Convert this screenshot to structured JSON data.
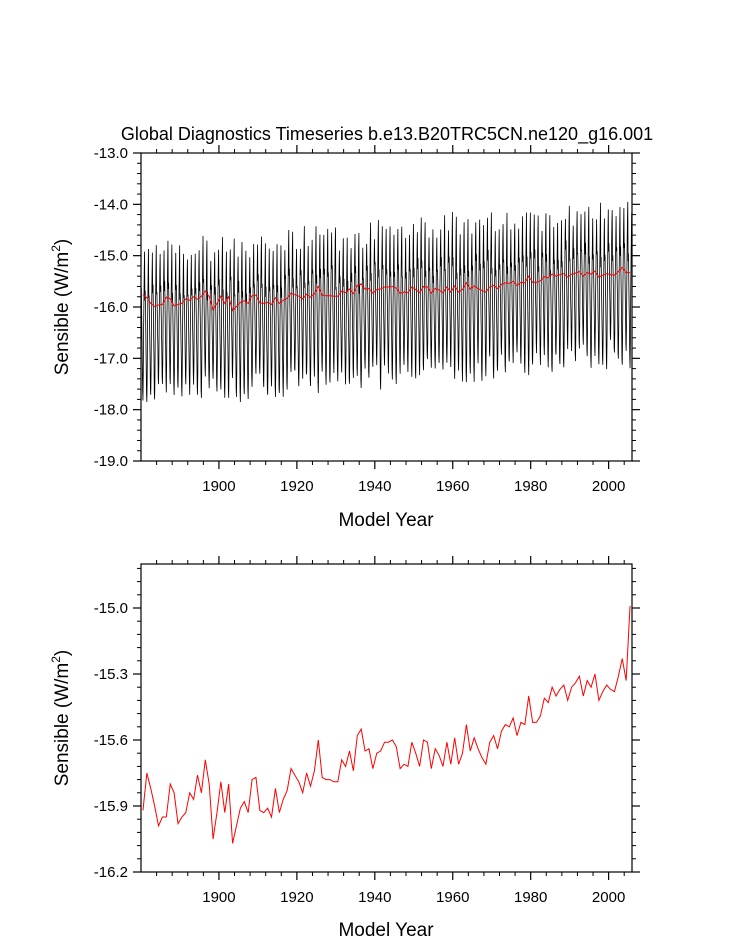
{
  "title": "Global Diagnostics Timeseries b.e13.B20TRC5CN.ne120_g16.001",
  "colors": {
    "monthly": "#000000",
    "annual": "#ff0000",
    "axis": "#000000",
    "background": "#ffffff"
  },
  "chart_data": [
    {
      "type": "line",
      "title": "Global Diagnostics Timeseries b.e13.B20TRC5CN.ne120_g16.001",
      "xlabel": "Model Year",
      "ylabel": "Sensible (W/m",
      "ylabel_sup": "2",
      "ylabel_close": ")",
      "xlim": [
        1880,
        2006
      ],
      "ylim": [
        -19.0,
        -13.0
      ],
      "xticks": [
        1900,
        1920,
        1940,
        1960,
        1980,
        2000
      ],
      "xtick_labels": [
        "1900",
        "1920",
        "1940",
        "1960",
        "1980",
        "2000"
      ],
      "yticks": [
        -19.0,
        -18.0,
        -17.0,
        -16.0,
        -15.0,
        -14.0,
        -13.0
      ],
      "ytick_labels": [
        "-19.0",
        "-18.0",
        "-17.0",
        "-16.0",
        "-15.0",
        "-14.0",
        "-13.0"
      ],
      "grid": false,
      "series": [
        {
          "color": "#000000",
          "description": "monthly values, seasonal cycle",
          "x_start": 1880,
          "x_end": 2005,
          "annual_max_start": -14.9,
          "annual_max_end": -14.05,
          "annual_min_start": -17.8,
          "annual_min_end": -16.95,
          "shape": [
            0.68,
            0.72,
            0.58,
            0.42,
            0.28,
            0.08,
            0.02,
            0.18,
            0.48,
            0.66,
            0.85,
            0.98
          ]
        },
        {
          "color": "#ff0000",
          "description": "annual mean",
          "x_start": 1880,
          "values": [
            -15.76,
            -15.82,
            -15.93,
            -15.99,
            -15.96,
            -15.95,
            -15.81,
            -15.84,
            -15.98,
            -15.95,
            -15.93,
            -15.84,
            -15.87,
            -15.8,
            -15.85,
            -15.79,
            -15.69,
            -15.8,
            -16.05,
            -15.93,
            -15.79,
            -15.93,
            -15.8,
            -16.07,
            -15.99,
            -15.91,
            -15.88,
            -15.93,
            -15.78,
            -15.77,
            -15.92,
            -15.93,
            -15.91,
            -15.95,
            -15.82,
            -15.93,
            -15.87,
            -15.83,
            -15.73,
            -15.76,
            -15.79,
            -15.84,
            -15.75,
            -15.81,
            -15.74,
            -15.6,
            -15.77,
            -15.78,
            -15.78,
            -15.79,
            -15.79,
            -15.69,
            -15.72,
            -15.65,
            -15.74,
            -15.58,
            -15.55,
            -15.65,
            -15.64,
            -15.73,
            -15.66,
            -15.65,
            -15.61,
            -15.61,
            -15.6,
            -15.63,
            -15.73,
            -15.71,
            -15.72,
            -15.61,
            -15.66,
            -15.72,
            -15.6,
            -15.61,
            -15.73,
            -15.64,
            -15.67,
            -15.72,
            -15.61,
            -15.71,
            -15.59,
            -15.71,
            -15.66,
            -15.53,
            -15.65,
            -15.59,
            -15.64,
            -15.68,
            -15.71,
            -15.61,
            -15.58,
            -15.64,
            -15.56,
            -15.53,
            -15.54,
            -15.5,
            -15.58,
            -15.52,
            -15.53,
            -15.4,
            -15.52,
            -15.52,
            -15.49,
            -15.41,
            -15.43,
            -15.36,
            -15.4,
            -15.37,
            -15.35,
            -15.42,
            -15.36,
            -15.34,
            -15.31,
            -15.4,
            -15.33,
            -15.36,
            -15.3,
            -15.42,
            -15.38,
            -15.35,
            -15.37,
            -15.38,
            -15.31,
            -15.23,
            -15.33,
            -15.33
          ]
        }
      ]
    },
    {
      "type": "line",
      "xlabel": "Model Year",
      "ylabel": "Sensible (W/m",
      "ylabel_sup": "2",
      "ylabel_close": ")",
      "xlim": [
        1880,
        2006
      ],
      "ylim": [
        -16.2,
        -14.8
      ],
      "xticks": [
        1900,
        1920,
        1940,
        1960,
        1980,
        2000
      ],
      "xtick_labels": [
        "1900",
        "1920",
        "1940",
        "1960",
        "1980",
        "2000"
      ],
      "yticks": [
        -16.2,
        -15.9,
        -15.6,
        -15.3,
        -15.0
      ],
      "ytick_labels": [
        "-16.2",
        "-15.9",
        "-15.6",
        "-15.3",
        "-15.0"
      ],
      "grid": false,
      "series": [
        {
          "color": "#ff0000",
          "x_start": 1880,
          "values": [
            -15.92,
            -15.75,
            -15.82,
            -15.9,
            -15.99,
            -15.95,
            -15.95,
            -15.8,
            -15.84,
            -15.98,
            -15.95,
            -15.93,
            -15.84,
            -15.87,
            -15.76,
            -15.84,
            -15.69,
            -15.8,
            -16.05,
            -15.93,
            -15.79,
            -15.93,
            -15.8,
            -16.07,
            -15.99,
            -15.91,
            -15.88,
            -15.93,
            -15.78,
            -15.77,
            -15.92,
            -15.93,
            -15.91,
            -15.95,
            -15.82,
            -15.93,
            -15.87,
            -15.83,
            -15.73,
            -15.76,
            -15.79,
            -15.84,
            -15.75,
            -15.81,
            -15.74,
            -15.6,
            -15.77,
            -15.78,
            -15.78,
            -15.79,
            -15.79,
            -15.69,
            -15.72,
            -15.65,
            -15.74,
            -15.58,
            -15.55,
            -15.65,
            -15.64,
            -15.73,
            -15.66,
            -15.65,
            -15.61,
            -15.61,
            -15.6,
            -15.63,
            -15.73,
            -15.71,
            -15.72,
            -15.61,
            -15.66,
            -15.72,
            -15.6,
            -15.61,
            -15.73,
            -15.64,
            -15.67,
            -15.72,
            -15.61,
            -15.71,
            -15.59,
            -15.71,
            -15.66,
            -15.53,
            -15.65,
            -15.59,
            -15.64,
            -15.68,
            -15.71,
            -15.61,
            -15.58,
            -15.64,
            -15.56,
            -15.53,
            -15.54,
            -15.5,
            -15.58,
            -15.52,
            -15.53,
            -15.4,
            -15.52,
            -15.52,
            -15.49,
            -15.41,
            -15.43,
            -15.36,
            -15.4,
            -15.37,
            -15.35,
            -15.42,
            -15.36,
            -15.34,
            -15.31,
            -15.4,
            -15.33,
            -15.36,
            -15.3,
            -15.42,
            -15.38,
            -15.35,
            -15.37,
            -15.38,
            -15.31,
            -15.23,
            -15.33,
            -14.99
          ]
        }
      ]
    }
  ]
}
